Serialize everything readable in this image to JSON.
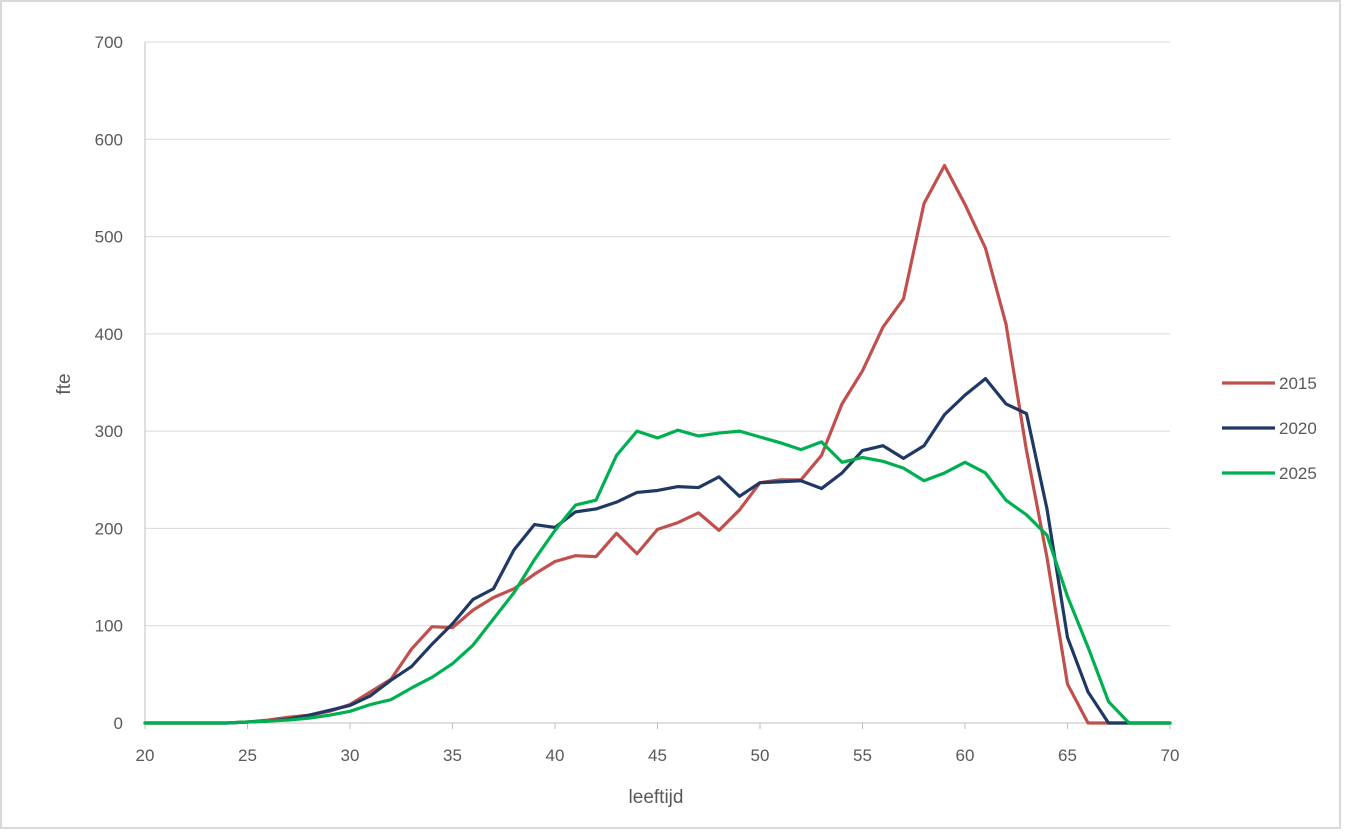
{
  "chart_data": {
    "type": "line",
    "title": "",
    "xlabel": "leeftijd",
    "ylabel": "fte",
    "xlim": [
      20,
      70
    ],
    "ylim": [
      0,
      700
    ],
    "xticks": [
      20,
      25,
      30,
      35,
      40,
      45,
      50,
      55,
      60,
      65,
      70
    ],
    "yticks": [
      0,
      100,
      200,
      300,
      400,
      500,
      600,
      700
    ],
    "grid": "horizontal",
    "legend_position": "right",
    "x": [
      20,
      21,
      22,
      23,
      24,
      25,
      26,
      27,
      28,
      29,
      30,
      31,
      32,
      33,
      34,
      35,
      36,
      37,
      38,
      39,
      40,
      41,
      42,
      43,
      44,
      45,
      46,
      47,
      48,
      49,
      50,
      51,
      52,
      53,
      54,
      55,
      56,
      57,
      58,
      59,
      60,
      61,
      62,
      63,
      64,
      65,
      66,
      67,
      68,
      69,
      70
    ],
    "series": [
      {
        "name": "2015",
        "color": "#c0504d",
        "values": [
          0,
          0,
          0,
          0,
          0,
          1,
          3,
          6,
          8,
          12,
          19,
          32,
          45,
          76,
          99,
          98,
          116,
          129,
          138,
          153,
          166,
          172,
          171,
          195,
          174,
          199,
          206,
          216,
          198,
          219,
          247,
          250,
          250,
          275,
          328,
          362,
          407,
          436,
          534,
          573,
          533,
          488,
          410,
          280,
          170,
          40,
          0,
          0,
          0,
          0,
          0
        ]
      },
      {
        "name": "2020",
        "color": "#1f3864",
        "values": [
          0,
          0,
          0,
          0,
          0,
          1,
          2,
          4,
          8,
          13,
          18,
          28,
          44,
          58,
          81,
          102,
          127,
          138,
          178,
          204,
          201,
          217,
          220,
          227,
          237,
          239,
          243,
          242,
          253,
          233,
          247,
          248,
          249,
          241,
          257,
          280,
          285,
          272,
          285,
          317,
          337,
          354,
          328,
          318,
          220,
          88,
          32,
          0,
          0,
          0,
          0
        ]
      },
      {
        "name": "2025",
        "color": "#00b050",
        "values": [
          0,
          0,
          0,
          0,
          0,
          1,
          2,
          3,
          5,
          8,
          12,
          19,
          24,
          36,
          47,
          61,
          80,
          107,
          134,
          168,
          198,
          224,
          229,
          275,
          300,
          293,
          301,
          295,
          298,
          300,
          294,
          288,
          281,
          289,
          268,
          273,
          269,
          262,
          249,
          257,
          268,
          257,
          229,
          214,
          193,
          130,
          78,
          22,
          0,
          0,
          0
        ]
      }
    ]
  }
}
